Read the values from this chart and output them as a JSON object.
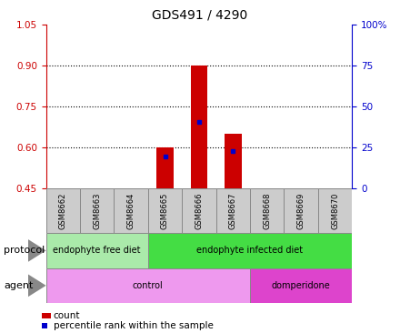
{
  "title": "GDS491 / 4290",
  "samples": [
    "GSM8662",
    "GSM8663",
    "GSM8664",
    "GSM8665",
    "GSM8666",
    "GSM8667",
    "GSM8668",
    "GSM8669",
    "GSM8670"
  ],
  "count_values": [
    0.45,
    0.45,
    0.45,
    0.6,
    0.9,
    0.65,
    0.45,
    0.45,
    0.45
  ],
  "count_bottom": [
    0.45,
    0.45,
    0.45,
    0.45,
    0.45,
    0.45,
    0.45,
    0.45,
    0.45
  ],
  "percentile_values": [
    0.45,
    0.45,
    0.45,
    0.565,
    0.695,
    0.585,
    0.45,
    0.45,
    0.45
  ],
  "ylim": [
    0.45,
    1.05
  ],
  "yticks_left": [
    0.45,
    0.6,
    0.75,
    0.9,
    1.05
  ],
  "yticks_right_labels": [
    "0",
    "25",
    "50",
    "75",
    "100%"
  ],
  "bar_color": "#cc0000",
  "percentile_color": "#0000cc",
  "protocol_groups": [
    {
      "label": "endophyte free diet",
      "start": 0,
      "end": 3,
      "color": "#aaeaaa"
    },
    {
      "label": "endophyte infected diet",
      "start": 3,
      "end": 9,
      "color": "#44dd44"
    }
  ],
  "agent_groups": [
    {
      "label": "control",
      "start": 0,
      "end": 6,
      "color": "#ee99ee"
    },
    {
      "label": "domperidone",
      "start": 6,
      "end": 9,
      "color": "#dd44cc"
    }
  ],
  "protocol_label": "protocol",
  "agent_label": "agent",
  "legend_count_label": "count",
  "legend_percentile_label": "percentile rank within the sample",
  "axis_left_color": "#cc0000",
  "axis_right_color": "#0000cc",
  "sample_box_color": "#cccccc",
  "bar_width": 0.5
}
